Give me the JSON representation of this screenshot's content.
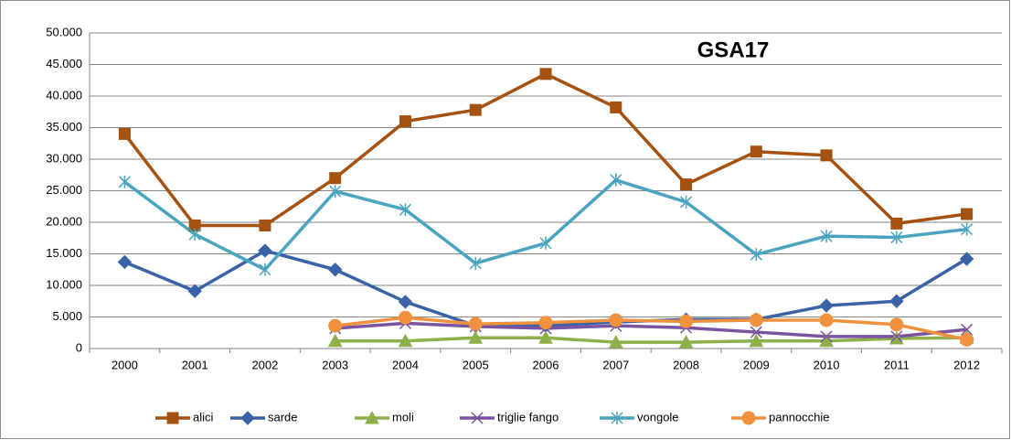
{
  "chart_data": {
    "type": "line",
    "title": "GSA17",
    "categories": [
      "2000",
      "2001",
      "2002",
      "2003",
      "2004",
      "2005",
      "2006",
      "2007",
      "2008",
      "2009",
      "2010",
      "2011",
      "2012"
    ],
    "series": [
      {
        "name": "alici",
        "color": "#a5510f",
        "marker": "square",
        "values": [
          34000,
          19500,
          19500,
          27000,
          36000,
          37800,
          43500,
          38200,
          26000,
          31200,
          30600,
          19800,
          21300
        ]
      },
      {
        "name": "sarde",
        "color": "#3a62a7",
        "marker": "diamond",
        "values": [
          13700,
          9100,
          15500,
          12500,
          7400,
          3600,
          3600,
          4200,
          4600,
          4600,
          6800,
          7500,
          14200
        ]
      },
      {
        "name": "moli",
        "color": "#8db04a",
        "marker": "triangle",
        "values": [
          null,
          null,
          null,
          1200,
          1200,
          1700,
          1700,
          1000,
          1000,
          1200,
          1200,
          1600,
          1700
        ]
      },
      {
        "name": "triglie fango",
        "color": "#7a54a0",
        "marker": "x",
        "values": [
          null,
          null,
          null,
          3200,
          4000,
          3500,
          3200,
          3600,
          3300,
          2600,
          1900,
          1900,
          3000
        ]
      },
      {
        "name": "vongole",
        "color": "#4aa4bf",
        "marker": "star",
        "values": [
          26400,
          18100,
          12500,
          24900,
          22000,
          13500,
          16700,
          26700,
          23200,
          14900,
          17800,
          17600,
          18900
        ]
      },
      {
        "name": "pannocchie",
        "color": "#f0913e",
        "marker": "circle",
        "values": [
          null,
          null,
          null,
          3600,
          4900,
          3900,
          4100,
          4500,
          4300,
          4500,
          4500,
          3800,
          1400
        ]
      }
    ],
    "ylim": [
      0,
      50000
    ],
    "yticks": [
      0,
      {
        "value": 5000,
        "label": "5.000"
      },
      {
        "value": 10000,
        "label": "10.000"
      },
      {
        "value": 15000,
        "label": "15.000"
      },
      {
        "value": 20000,
        "label": "20.000"
      },
      {
        "value": 25000,
        "label": "25.000"
      },
      {
        "value": 30000,
        "label": "30.000"
      },
      {
        "value": 35000,
        "label": "35.000"
      },
      {
        "value": 40000,
        "label": "40.000"
      },
      {
        "value": 45000,
        "label": "45.000"
      },
      {
        "value": 50000,
        "label": "50.000"
      }
    ],
    "grid": true,
    "legend": "bottom"
  }
}
